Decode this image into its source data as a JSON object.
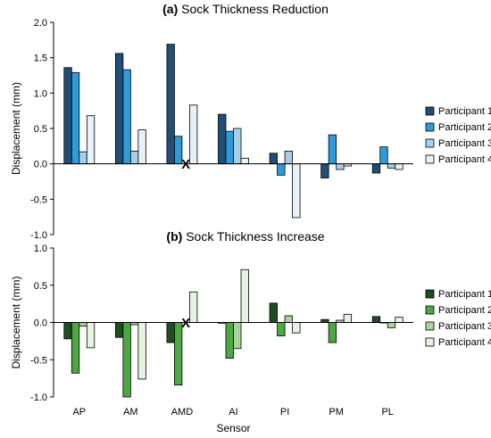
{
  "chart_data": [
    {
      "type": "bar",
      "title_bold": "(a)",
      "title": "Sock Thickness Reduction",
      "ylabel": "Displacement (mm)",
      "xlabel": "",
      "ylim": [
        -1.0,
        2.0
      ],
      "yticks": [
        "-1.0",
        "-0.5",
        "0.0",
        "0.5",
        "1.0",
        "1.5",
        "2.0"
      ],
      "ytick_values": [
        -1.0,
        -0.5,
        0.0,
        0.5,
        1.0,
        1.5,
        2.0
      ],
      "categories": [
        "AP",
        "AM",
        "AMD",
        "AI",
        "PI",
        "PM",
        "PL"
      ],
      "show_category_labels": false,
      "grid": false,
      "legend_position": "right",
      "series": [
        {
          "name": "Participant 1",
          "color": "#1f4e79",
          "values": [
            1.36,
            1.56,
            1.69,
            0.7,
            0.15,
            -0.2,
            -0.13
          ]
        },
        {
          "name": "Participant 2",
          "color": "#2e9ad8",
          "values": [
            1.29,
            1.33,
            0.39,
            0.46,
            -0.16,
            0.41,
            0.24
          ]
        },
        {
          "name": "Participant 3",
          "color": "#a9cfe8",
          "values": [
            0.17,
            0.18,
            null,
            0.5,
            0.18,
            -0.08,
            -0.06
          ]
        },
        {
          "name": "Participant 4",
          "color": "#e6f1f8",
          "values": [
            0.68,
            0.48,
            0.83,
            0.08,
            -0.76,
            -0.03,
            -0.08
          ]
        }
      ],
      "missing_markers": [
        {
          "category": "AMD",
          "series": "Participant 3",
          "symbol": "X"
        }
      ]
    },
    {
      "type": "bar",
      "title_bold": "(b)",
      "title": "Sock Thickness Increase",
      "ylabel": "Displacement (mm)",
      "xlabel": "Sensor",
      "ylim": [
        -1.0,
        1.0
      ],
      "yticks": [
        "-1.0",
        "-0.5",
        "0.0",
        "0.5",
        "1.0"
      ],
      "ytick_values": [
        -1.0,
        -0.5,
        0.0,
        0.5,
        1.0
      ],
      "categories": [
        "AP",
        "AM",
        "AMD",
        "AI",
        "PI",
        "PM",
        "PL"
      ],
      "show_category_labels": true,
      "grid": false,
      "legend_position": "right",
      "series": [
        {
          "name": "Participant 1",
          "color": "#1e4d1f",
          "values": [
            -0.22,
            -0.2,
            -0.27,
            -0.01,
            0.26,
            0.04,
            0.08
          ]
        },
        {
          "name": "Participant 2",
          "color": "#4da742",
          "values": [
            -0.68,
            -1.0,
            -0.84,
            -0.48,
            -0.18,
            -0.27,
            0.0
          ]
        },
        {
          "name": "Participant 3",
          "color": "#a6d49d",
          "values": [
            -0.05,
            -0.03,
            null,
            -0.35,
            0.09,
            0.03,
            -0.07
          ]
        },
        {
          "name": "Participant 4",
          "color": "#e5f3e1",
          "values": [
            -0.34,
            -0.76,
            0.41,
            0.71,
            -0.14,
            0.11,
            0.07
          ]
        }
      ],
      "missing_markers": [
        {
          "category": "AMD",
          "series": "Participant 3",
          "symbol": "X"
        }
      ]
    }
  ]
}
